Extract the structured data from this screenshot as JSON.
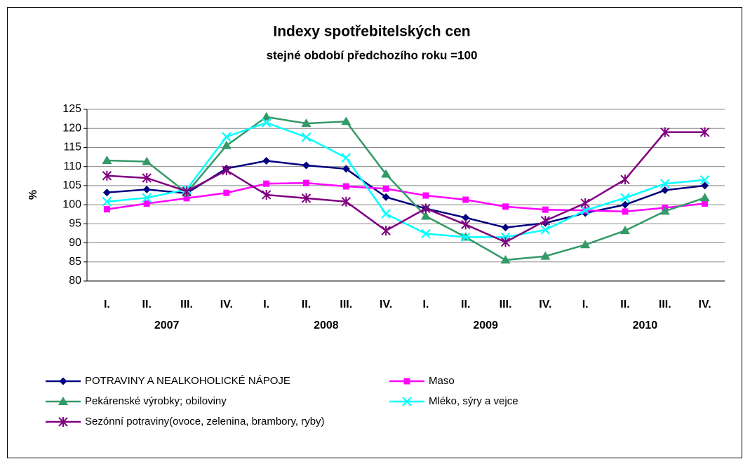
{
  "chart_data": {
    "type": "line",
    "title": "Indexy spotřebitelských cen",
    "subtitle": "stejné období předchozího roku =100",
    "ylabel": "%",
    "categories": [
      "I.",
      "II.",
      "III.",
      "IV.",
      "I.",
      "II.",
      "III.",
      "IV.",
      "I.",
      "II.",
      "III.",
      "IV.",
      "I.",
      "II.",
      "III.",
      "IV."
    ],
    "years": [
      "2007",
      "2008",
      "2009",
      "2010"
    ],
    "ylim": [
      80,
      125
    ],
    "yticks": [
      80,
      85,
      90,
      95,
      100,
      105,
      110,
      115,
      120,
      125
    ],
    "grid": true,
    "legend": "bottom",
    "series": [
      {
        "name": "POTRAVINY A NEALKOHOLICKÉ NÁPOJE",
        "color": "#000080",
        "marker": "diamond",
        "values": [
          103.2,
          104,
          103,
          109.5,
          111.5,
          110.3,
          109.4,
          102,
          99,
          96.6,
          94,
          95.2,
          97.8,
          100,
          103.8,
          105
        ]
      },
      {
        "name": "Maso",
        "color": "#ff00ff",
        "marker": "square",
        "values": [
          98.8,
          100.3,
          101.7,
          103.1,
          105.5,
          105.7,
          104.8,
          104.2,
          102.4,
          101.3,
          99.5,
          98.7,
          98.5,
          98.2,
          99.2,
          100.3
        ]
      },
      {
        "name": "Pekárenské výrobky; obiloviny",
        "color": "#339966",
        "marker": "triangle",
        "values": [
          111.6,
          111.3,
          103.1,
          115.5,
          123,
          121.3,
          121.8,
          108,
          97,
          91.5,
          85.5,
          86.5,
          89.5,
          93.2,
          98.3,
          101.8
        ]
      },
      {
        "name": "Mléko, sýry a vejce",
        "color": "#00ffff",
        "marker": "x",
        "values": [
          100.8,
          101.8,
          104,
          117.8,
          121.5,
          117.7,
          112.3,
          97.6,
          92.4,
          91.5,
          91.5,
          93.4,
          98.5,
          101.8,
          105.5,
          106.5
        ]
      },
      {
        "name": "Sezónní potraviny(ovoce, zelenina, brambory, ryby)",
        "color": "#800080",
        "marker": "star",
        "values": [
          107.6,
          107,
          103.5,
          109,
          102.6,
          101.7,
          100.8,
          93.2,
          99,
          94.8,
          90.2,
          95.8,
          100.4,
          106.6,
          119,
          119
        ]
      }
    ]
  }
}
